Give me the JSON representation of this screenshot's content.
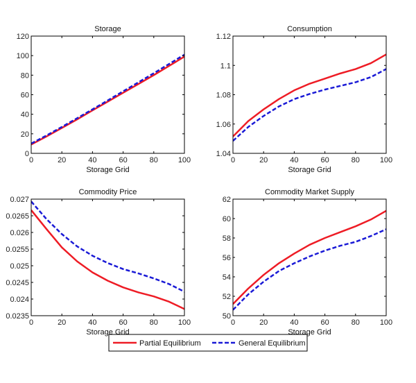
{
  "chart_data": [
    {
      "type": "line",
      "title": "Storage",
      "xlabel": "Storage Grid",
      "ylabel": "",
      "xlim": [
        0,
        100
      ],
      "ylim": [
        0,
        120
      ],
      "xticks": [
        0,
        20,
        40,
        60,
        80,
        100
      ],
      "xtick_labels": [
        "0",
        "20",
        "40",
        "60",
        "80",
        "100"
      ],
      "yticks": [
        0,
        20,
        40,
        60,
        80,
        100,
        120
      ],
      "ytick_labels": [
        "0",
        "20",
        "40",
        "60",
        "80",
        "100",
        "120"
      ],
      "grid": false,
      "x": [
        0,
        10,
        20,
        30,
        40,
        50,
        60,
        70,
        80,
        90,
        100
      ],
      "series": [
        {
          "name": "Partial Equilibrium",
          "values": [
            9,
            17.3,
            26,
            34.8,
            44,
            53,
            62,
            71,
            80,
            89.5,
            99
          ]
        },
        {
          "name": "General Equilibrium",
          "values": [
            10,
            18.3,
            27,
            36,
            45,
            54.2,
            63.5,
            72.7,
            82,
            91.5,
            101
          ]
        }
      ]
    },
    {
      "type": "line",
      "title": "Consumption",
      "xlabel": "Storage Grid",
      "ylabel": "",
      "xlim": [
        0,
        100
      ],
      "ylim": [
        1.04,
        1.12
      ],
      "xticks": [
        0,
        20,
        40,
        60,
        80,
        100
      ],
      "xtick_labels": [
        "0",
        "20",
        "40",
        "60",
        "80",
        "100"
      ],
      "yticks": [
        1.04,
        1.06,
        1.08,
        1.1,
        1.12
      ],
      "ytick_labels": [
        "1.04",
        "1.06",
        "1.08",
        "1.1",
        "1.12"
      ],
      "grid": false,
      "x": [
        0,
        10,
        20,
        30,
        40,
        50,
        60,
        70,
        80,
        90,
        100
      ],
      "series": [
        {
          "name": "Partial Equilibrium",
          "values": [
            1.0515,
            1.062,
            1.07,
            1.077,
            1.083,
            1.0875,
            1.091,
            1.0945,
            1.0975,
            1.1015,
            1.1075
          ]
        },
        {
          "name": "General Equilibrium",
          "values": [
            1.0485,
            1.058,
            1.0655,
            1.072,
            1.077,
            1.0805,
            1.0835,
            1.086,
            1.0885,
            1.092,
            1.0975
          ]
        }
      ]
    },
    {
      "type": "line",
      "title": "Commodity Price",
      "xlabel": "Storage Grid",
      "ylabel": "",
      "xlim": [
        0,
        100
      ],
      "ylim": [
        0.0235,
        0.027
      ],
      "xticks": [
        0,
        20,
        40,
        60,
        80,
        100
      ],
      "xtick_labels": [
        "0",
        "20",
        "40",
        "60",
        "80",
        "100"
      ],
      "yticks": [
        0.0235,
        0.024,
        0.0245,
        0.025,
        0.0255,
        0.026,
        0.0265,
        0.027
      ],
      "ytick_labels": [
        "0.0235",
        "0.024",
        "0.0245",
        "0.025",
        "0.0255",
        "0.026",
        "0.0265",
        "0.027"
      ],
      "grid": false,
      "x": [
        0,
        10,
        20,
        30,
        40,
        50,
        60,
        70,
        80,
        90,
        100
      ],
      "series": [
        {
          "name": "Partial Equilibrium",
          "values": [
            0.02667,
            0.0261,
            0.02555,
            0.02513,
            0.0248,
            0.02455,
            0.02435,
            0.0242,
            0.02408,
            0.02392,
            0.0237
          ]
        },
        {
          "name": "General Equilibrium",
          "values": [
            0.02693,
            0.0264,
            0.02595,
            0.02558,
            0.0253,
            0.02508,
            0.0249,
            0.02477,
            0.02462,
            0.02445,
            0.02422
          ]
        }
      ]
    },
    {
      "type": "line",
      "title": "Commodity Market Supply",
      "xlabel": "Storage Grid",
      "ylabel": "",
      "xlim": [
        0,
        100
      ],
      "ylim": [
        50,
        62
      ],
      "xticks": [
        0,
        20,
        40,
        60,
        80,
        100
      ],
      "xtick_labels": [
        "0",
        "20",
        "40",
        "60",
        "80",
        "100"
      ],
      "yticks": [
        50,
        52,
        54,
        56,
        58,
        60,
        62
      ],
      "ytick_labels": [
        "50",
        "52",
        "54",
        "56",
        "58",
        "60",
        "62"
      ],
      "grid": false,
      "x": [
        0,
        10,
        20,
        30,
        40,
        50,
        60,
        70,
        80,
        90,
        100
      ],
      "series": [
        {
          "name": "Partial Equilibrium",
          "values": [
            51.2,
            52.8,
            54.2,
            55.4,
            56.4,
            57.3,
            58.0,
            58.6,
            59.2,
            59.9,
            60.8
          ]
        },
        {
          "name": "General Equilibrium",
          "values": [
            50.6,
            52.2,
            53.5,
            54.6,
            55.4,
            56.1,
            56.7,
            57.2,
            57.6,
            58.2,
            58.9
          ]
        }
      ]
    }
  ],
  "legend": {
    "placement": "bottom-center",
    "entries": [
      {
        "label": "Partial Equilibrium",
        "color": "#ee1c25",
        "style": "solid"
      },
      {
        "label": "General Equilibrium",
        "color": "#1a1ad6",
        "style": "dashed"
      }
    ]
  }
}
